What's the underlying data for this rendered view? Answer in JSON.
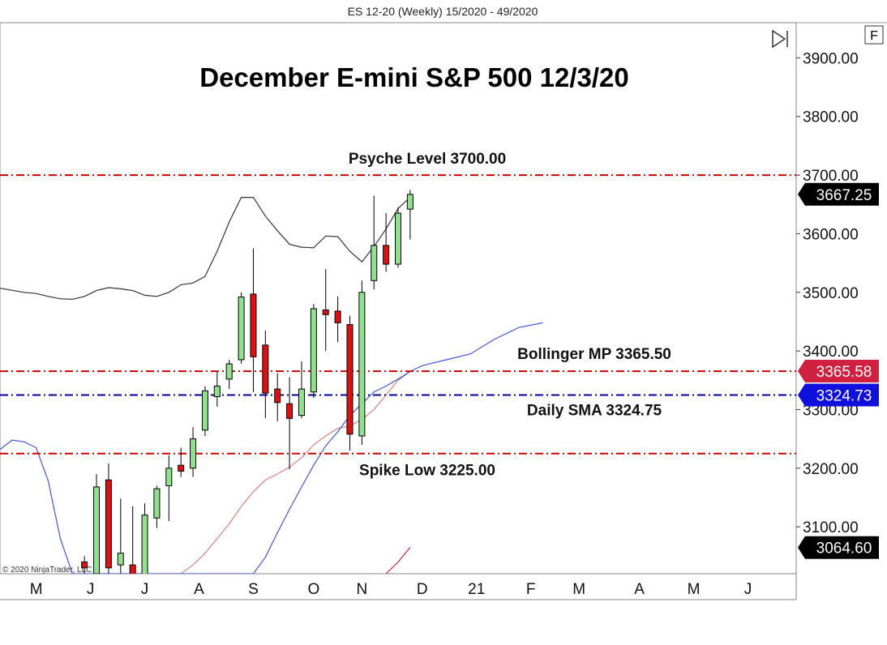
{
  "header": {
    "title": "ES 12-20 (Weekly)  15/2020 - 49/2020"
  },
  "buttons": {
    "f_label": "F"
  },
  "copyright": "© 2020 NinjaTrader, LLC",
  "chart_data": {
    "type": "candlestick",
    "title": "December E-mini S&P 500 12/3/20",
    "ylim": [
      3020,
      3960
    ],
    "y_ticks": [
      "3100.00",
      "3200.00",
      "3300.00",
      "3400.00",
      "3500.00",
      "3600.00",
      "3700.00",
      "3800.00",
      "3900.00"
    ],
    "y_tick_values": [
      3100,
      3200,
      3300,
      3400,
      3500,
      3600,
      3700,
      3800,
      3900
    ],
    "x_ticks": [
      {
        "label": "M",
        "week": 18
      },
      {
        "label": "J",
        "week": 22.5
      },
      {
        "label": "J",
        "week": 27
      },
      {
        "label": "A",
        "week": 31.5
      },
      {
        "label": "S",
        "week": 36
      },
      {
        "label": "O",
        "week": 41
      },
      {
        "label": "N",
        "week": 45
      },
      {
        "label": "D",
        "week": 50
      },
      {
        "label": "21",
        "week": 54.5
      },
      {
        "label": "F",
        "week": 59
      },
      {
        "label": "M",
        "week": 63
      },
      {
        "label": "A",
        "week": 68
      },
      {
        "label": "M",
        "week": 72.5
      },
      {
        "label": "J",
        "week": 77
      }
    ],
    "x_range_weeks": [
      15,
      81
    ],
    "candles": [
      {
        "week": 22,
        "open": 3040,
        "high": 3050,
        "low": 3020,
        "close": 3030
      },
      {
        "week": 23,
        "open": 3020,
        "high": 3190,
        "low": 3000,
        "close": 3168
      },
      {
        "week": 24,
        "open": 3180,
        "high": 3208,
        "low": 2990,
        "close": 3030
      },
      {
        "week": 25,
        "open": 3035,
        "high": 3148,
        "low": 2990,
        "close": 3055
      },
      {
        "week": 26,
        "open": 3035,
        "high": 3135,
        "low": 2980,
        "close": 3005
      },
      {
        "week": 27,
        "open": 3010,
        "high": 3140,
        "low": 2990,
        "close": 3120
      },
      {
        "week": 28,
        "open": 3115,
        "high": 3170,
        "low": 3098,
        "close": 3165
      },
      {
        "week": 29,
        "open": 3170,
        "high": 3222,
        "low": 3110,
        "close": 3200
      },
      {
        "week": 30,
        "open": 3205,
        "high": 3235,
        "low": 3185,
        "close": 3195
      },
      {
        "week": 31,
        "open": 3200,
        "high": 3270,
        "low": 3185,
        "close": 3250
      },
      {
        "week": 32,
        "open": 3265,
        "high": 3340,
        "low": 3255,
        "close": 3332
      },
      {
        "week": 33,
        "open": 3322,
        "high": 3365,
        "low": 3305,
        "close": 3340
      },
      {
        "week": 34,
        "open": 3352,
        "high": 3385,
        "low": 3335,
        "close": 3378
      },
      {
        "week": 35,
        "open": 3385,
        "high": 3500,
        "low": 3378,
        "close": 3492
      },
      {
        "week": 36,
        "open": 3497,
        "high": 3575,
        "low": 3330,
        "close": 3390
      },
      {
        "week": 37,
        "open": 3410,
        "high": 3435,
        "low": 3285,
        "close": 3328
      },
      {
        "week": 38,
        "open": 3335,
        "high": 3362,
        "low": 3280,
        "close": 3312
      },
      {
        "week": 39,
        "open": 3310,
        "high": 3355,
        "low": 3198,
        "close": 3285
      },
      {
        "week": 40,
        "open": 3290,
        "high": 3382,
        "low": 3285,
        "close": 3335
      },
      {
        "week": 41,
        "open": 3330,
        "high": 3480,
        "low": 3320,
        "close": 3472
      },
      {
        "week": 42,
        "open": 3470,
        "high": 3540,
        "low": 3400,
        "close": 3462
      },
      {
        "week": 43,
        "open": 3468,
        "high": 3493,
        "low": 3415,
        "close": 3448
      },
      {
        "week": 44,
        "open": 3445,
        "high": 3460,
        "low": 3230,
        "close": 3258
      },
      {
        "week": 45,
        "open": 3255,
        "high": 3520,
        "low": 3240,
        "close": 3500
      },
      {
        "week": 46,
        "open": 3520,
        "high": 3665,
        "low": 3505,
        "close": 3580
      },
      {
        "week": 47,
        "open": 3580,
        "high": 3635,
        "low": 3535,
        "close": 3548
      },
      {
        "week": 48,
        "open": 3548,
        "high": 3645,
        "low": 3542,
        "close": 3635
      },
      {
        "week": 49,
        "open": 3642,
        "high": 3675,
        "low": 3590,
        "close": 3667
      }
    ],
    "lines": [
      {
        "name": "bollinger-upper",
        "color": "#333333",
        "points": [
          [
            15,
            3507
          ],
          [
            17,
            3500
          ],
          [
            18,
            3498
          ],
          [
            19,
            3493
          ],
          [
            20,
            3489
          ],
          [
            21,
            3488
          ],
          [
            22,
            3493
          ],
          [
            23,
            3503
          ],
          [
            24,
            3508
          ],
          [
            25,
            3506
          ],
          [
            26,
            3503
          ],
          [
            27,
            3495
          ],
          [
            28,
            3493
          ],
          [
            29,
            3500
          ],
          [
            30,
            3513
          ],
          [
            31,
            3516
          ],
          [
            32,
            3527
          ],
          [
            33,
            3570
          ],
          [
            34,
            3620
          ],
          [
            35,
            3662
          ],
          [
            36,
            3662
          ],
          [
            37,
            3630
          ],
          [
            38,
            3605
          ],
          [
            39,
            3582
          ],
          [
            40,
            3577
          ],
          [
            41,
            3576
          ],
          [
            42,
            3596
          ],
          [
            43,
            3595
          ],
          [
            44,
            3570
          ],
          [
            45,
            3552
          ],
          [
            46,
            3578
          ],
          [
            47,
            3608
          ],
          [
            48,
            3643
          ],
          [
            49,
            3662
          ]
        ]
      },
      {
        "name": "bollinger-mid",
        "color": "#e08080",
        "points": [
          [
            30,
            3020
          ],
          [
            31,
            3035
          ],
          [
            32,
            3055
          ],
          [
            33,
            3080
          ],
          [
            34,
            3105
          ],
          [
            35,
            3135
          ],
          [
            36,
            3160
          ],
          [
            37,
            3180
          ],
          [
            38,
            3190
          ],
          [
            39,
            3202
          ],
          [
            40,
            3218
          ],
          [
            41,
            3240
          ],
          [
            42,
            3255
          ],
          [
            43,
            3268
          ],
          [
            44,
            3272
          ],
          [
            45,
            3283
          ],
          [
            46,
            3300
          ],
          [
            47,
            3325
          ],
          [
            48,
            3350
          ],
          [
            49,
            3365
          ]
        ]
      },
      {
        "name": "bollinger-lower",
        "color": "#cc2244",
        "points": [
          [
            47,
            3020
          ],
          [
            48,
            3040
          ],
          [
            49,
            3065
          ]
        ]
      },
      {
        "name": "daily-sma",
        "color": "#4455dd",
        "points": [
          [
            15,
            3232
          ],
          [
            16,
            3248
          ],
          [
            17,
            3245
          ],
          [
            18,
            3235
          ],
          [
            19,
            3178
          ],
          [
            20,
            3080
          ],
          [
            21,
            3020
          ],
          [
            36,
            3020
          ],
          [
            37,
            3048
          ],
          [
            38,
            3090
          ],
          [
            39,
            3130
          ],
          [
            40,
            3168
          ],
          [
            41,
            3205
          ],
          [
            42,
            3238
          ],
          [
            43,
            3262
          ],
          [
            44,
            3290
          ],
          [
            45,
            3310
          ],
          [
            46,
            3330
          ],
          [
            47,
            3340
          ],
          [
            48,
            3352
          ],
          [
            49,
            3365
          ],
          [
            50,
            3375
          ],
          [
            52,
            3385
          ],
          [
            54,
            3395
          ],
          [
            56,
            3420
          ],
          [
            58,
            3440
          ],
          [
            60,
            3448
          ]
        ]
      }
    ],
    "levels": [
      {
        "label": "Psyche Level 3700.00",
        "value": 3700,
        "color": "#cc0000",
        "style": "dash-dot"
      },
      {
        "label": "Bollinger MP 3365.50",
        "value": 3365.5,
        "color": "#cc0000",
        "style": "dash-dot"
      },
      {
        "label": "Daily SMA 3324.75",
        "value": 3324.75,
        "color": "#000099",
        "style": "dash-dot"
      },
      {
        "label": "Spike Low 3225.00",
        "value": 3225,
        "color": "#cc0000",
        "style": "dash-dot"
      }
    ],
    "price_badges": [
      {
        "text": "3667.25",
        "value": 3667.25,
        "bg": "#000000"
      },
      {
        "text": "3365.58",
        "value": 3365.58,
        "bg": "#d02040"
      },
      {
        "text": "3324.73",
        "value": 3324.73,
        "bg": "#1010dd"
      },
      {
        "text": "3064.60",
        "value": 3064.6,
        "bg": "#000000"
      }
    ],
    "colors": {
      "up_body": "#90e090",
      "down_body": "#dd1111",
      "wick": "#000000"
    }
  }
}
